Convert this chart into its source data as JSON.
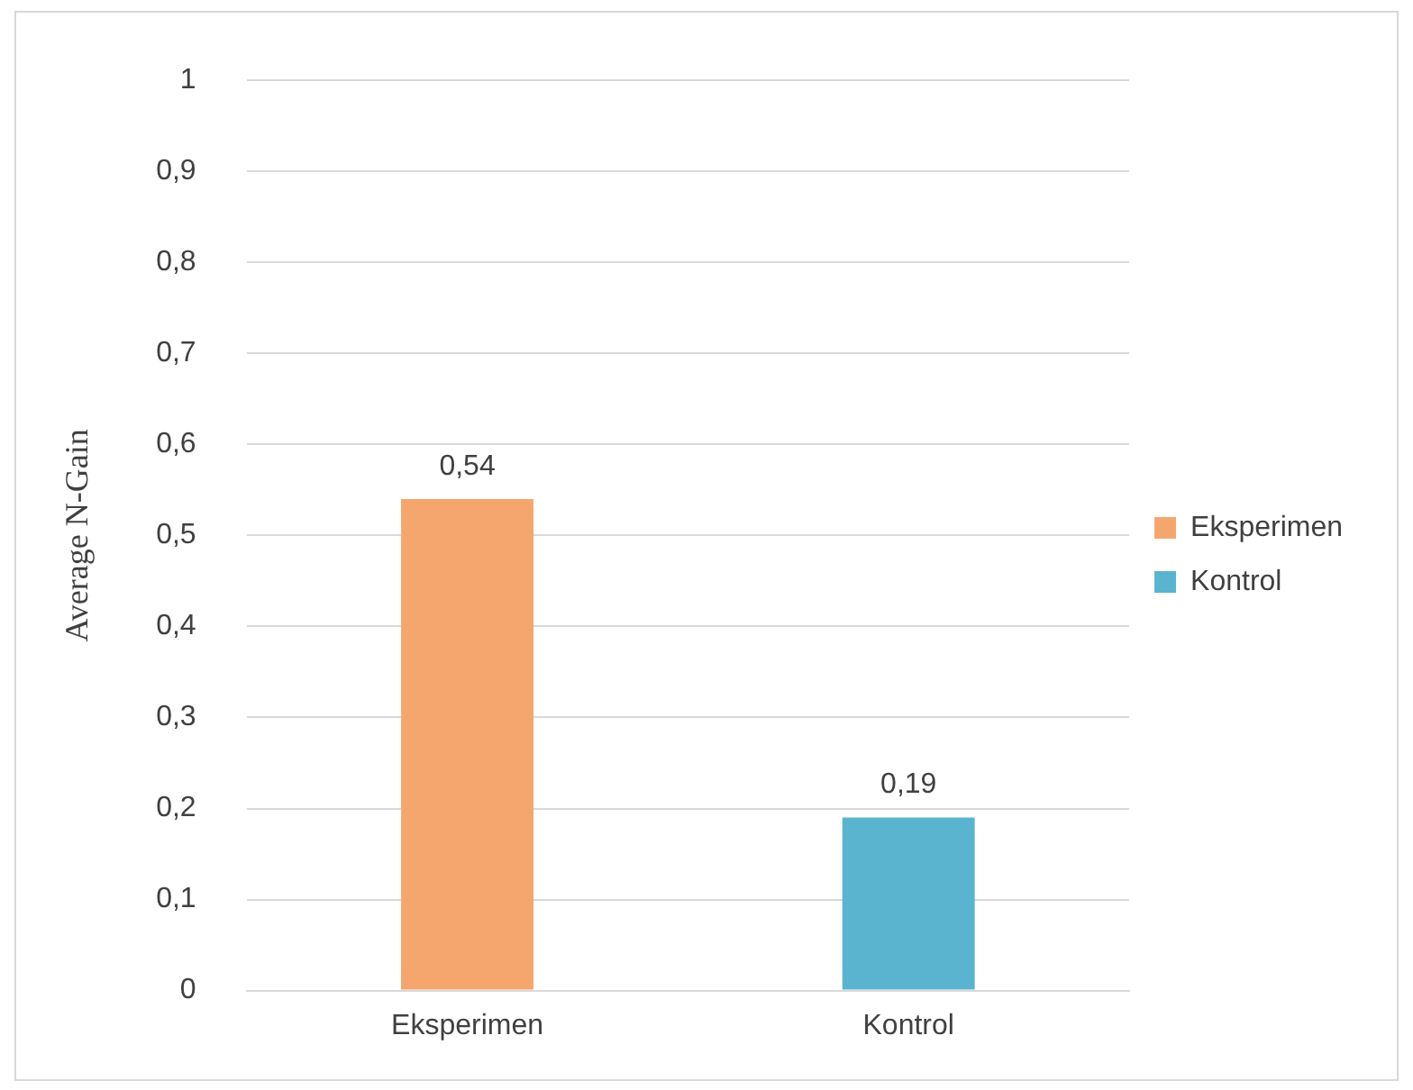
{
  "chart_data": {
    "type": "bar",
    "ylabel": "Average N-Gain",
    "categories": [
      "Eksperimen",
      "Kontrol"
    ],
    "series": [
      {
        "name": "Eksperimen",
        "color": "#f5a66e",
        "values": [
          0.54,
          null
        ],
        "value_labels": [
          "0,54",
          null
        ]
      },
      {
        "name": "Kontrol",
        "color": "#5ab4cf",
        "values": [
          null,
          0.19
        ],
        "value_labels": [
          null,
          "0,19"
        ]
      }
    ],
    "ylim": [
      0,
      1
    ],
    "yticks": [
      {
        "value": 0,
        "label": "0"
      },
      {
        "value": 0.1,
        "label": "0,1"
      },
      {
        "value": 0.2,
        "label": "0,2"
      },
      {
        "value": 0.3,
        "label": "0,3"
      },
      {
        "value": 0.4,
        "label": "0,4"
      },
      {
        "value": 0.5,
        "label": "0,5"
      },
      {
        "value": 0.6,
        "label": "0,6"
      },
      {
        "value": 0.7,
        "label": "0,7"
      },
      {
        "value": 0.8,
        "label": "0,8"
      },
      {
        "value": 0.9,
        "label": "0,9"
      },
      {
        "value": 1,
        "label": "1"
      }
    ],
    "grid": "y",
    "legend": "right"
  }
}
